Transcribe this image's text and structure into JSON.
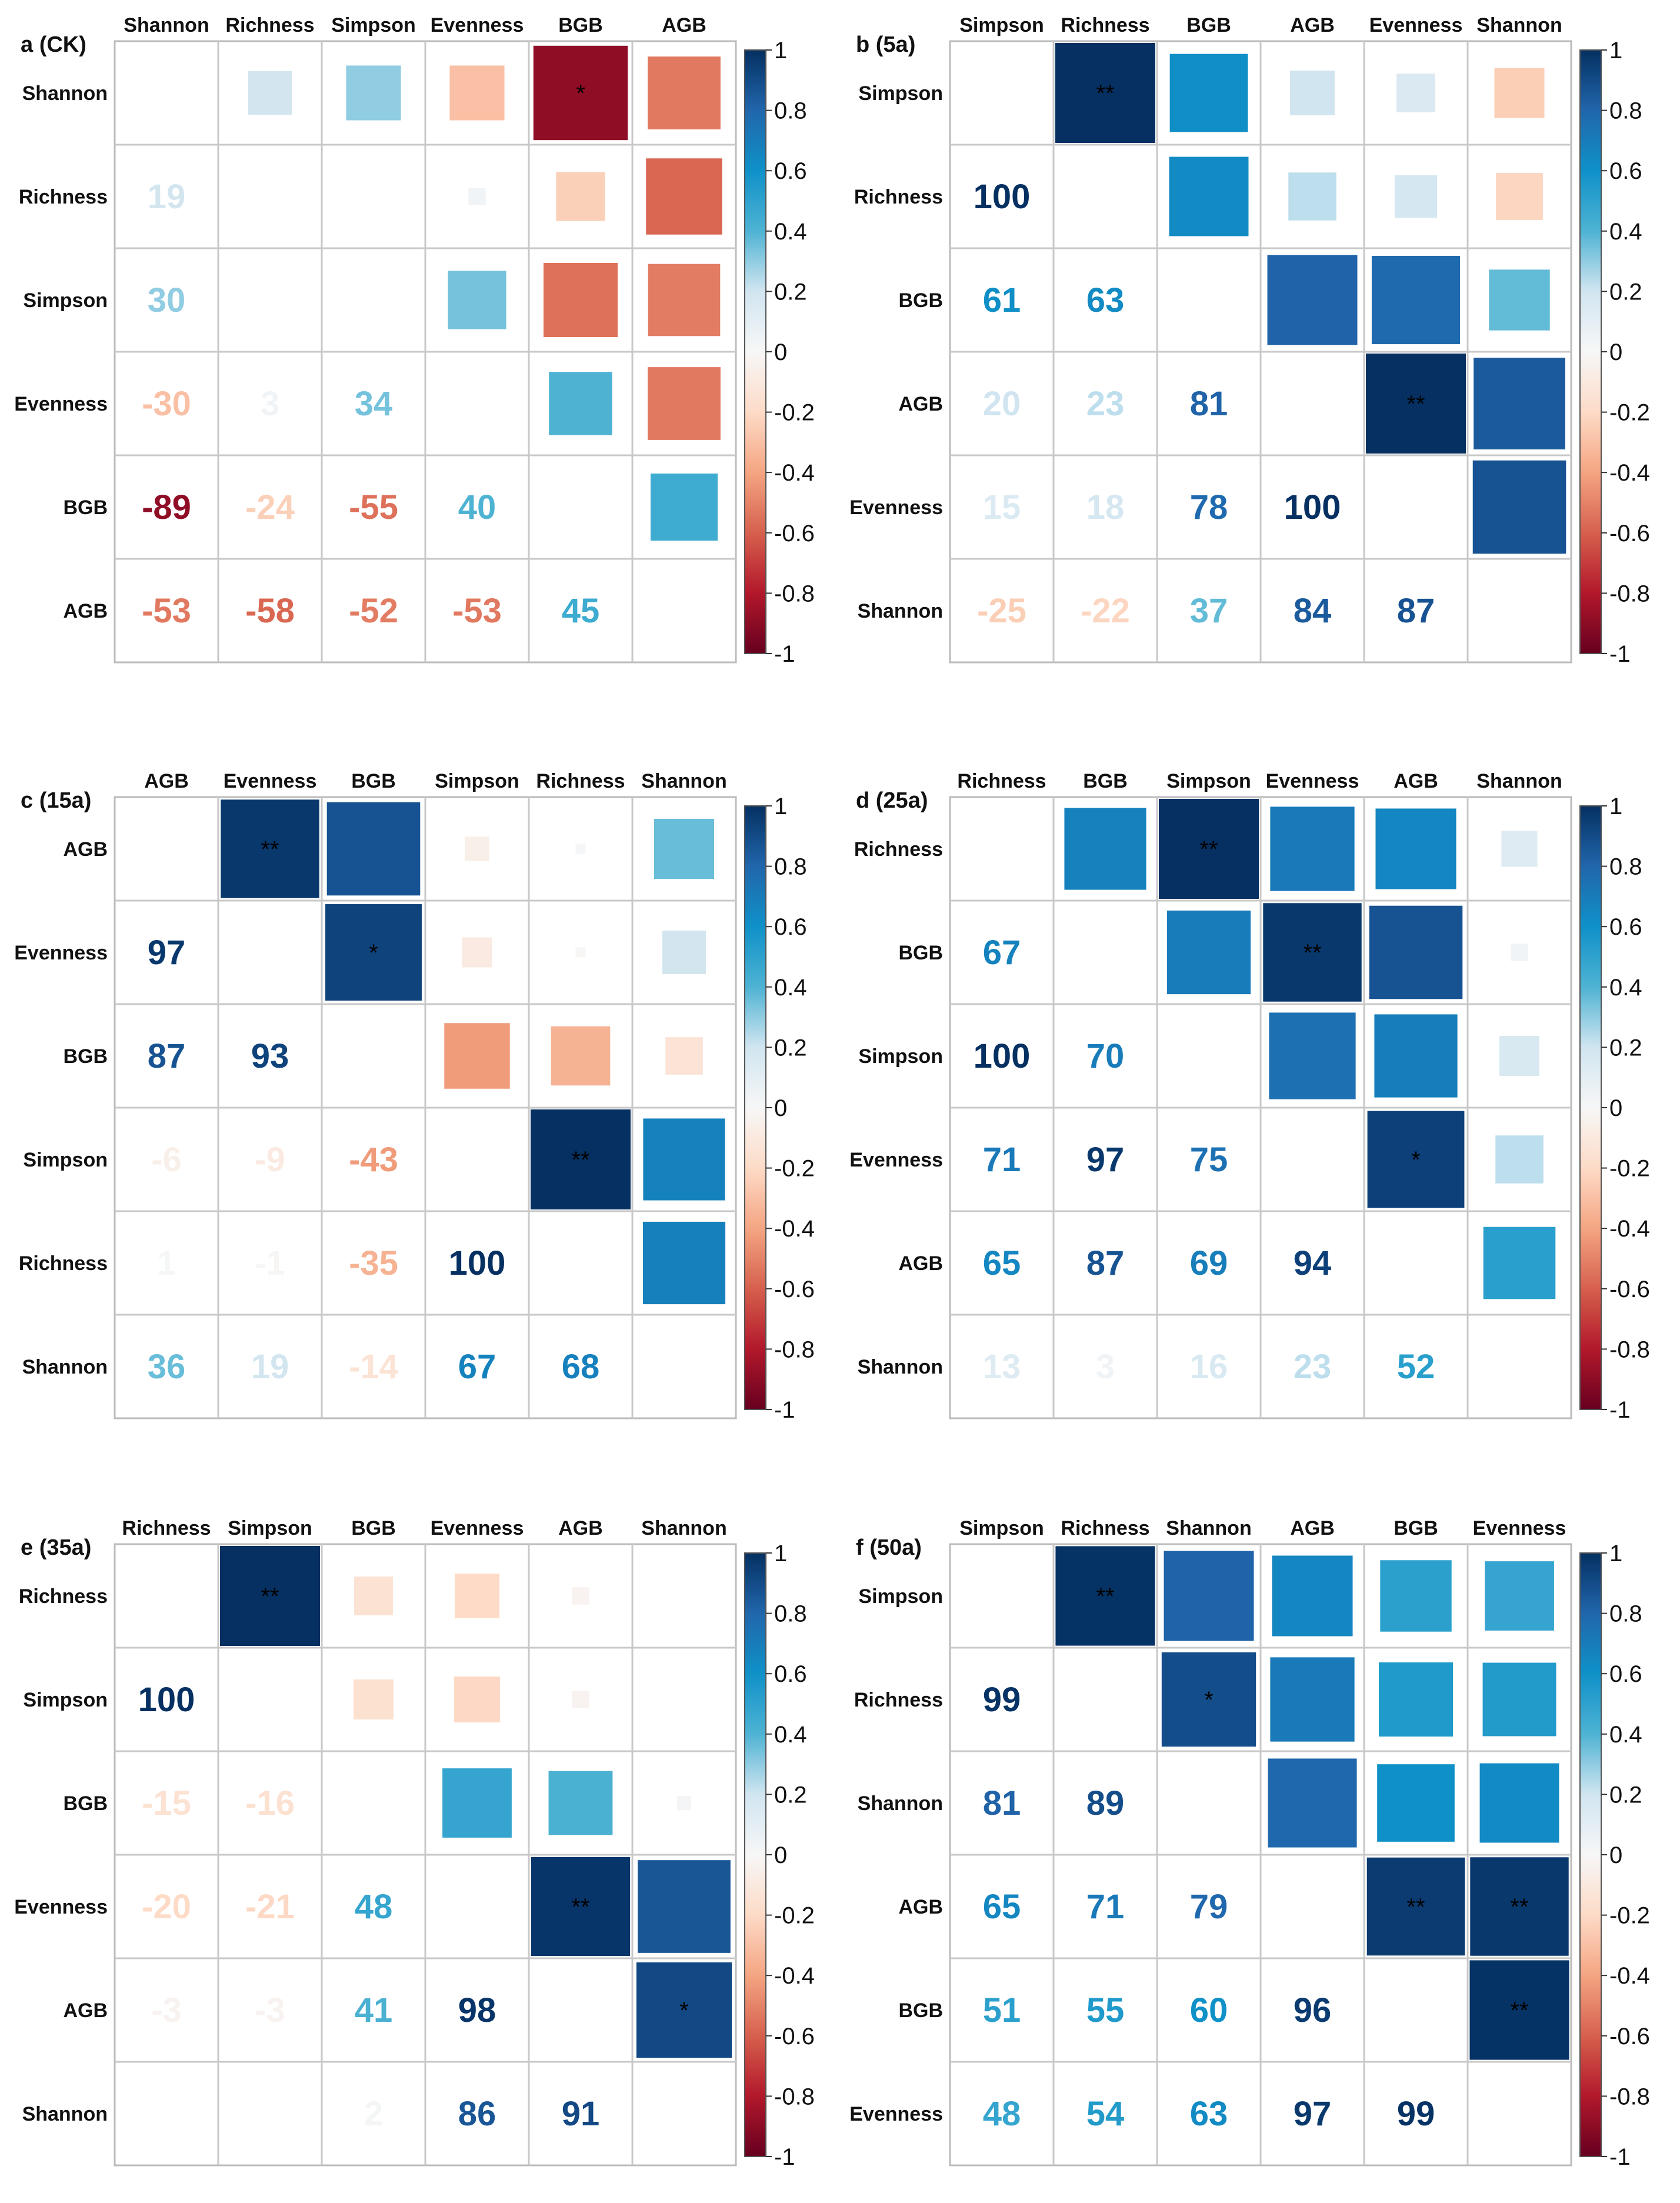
{
  "colorscale": {
    "stops": [
      {
        "v": -1.0,
        "c": "#67001f"
      },
      {
        "v": -0.8,
        "c": "#b2182b"
      },
      {
        "v": -0.6,
        "c": "#d6604d"
      },
      {
        "v": -0.4,
        "c": "#f4a582"
      },
      {
        "v": -0.2,
        "c": "#fddbc7"
      },
      {
        "v": 0.0,
        "c": "#f7f7f7"
      },
      {
        "v": 0.2,
        "c": "#d1e5f0"
      },
      {
        "v": 0.4,
        "c": "#4eb3d3"
      },
      {
        "v": 0.6,
        "c": "#0f91c8"
      },
      {
        "v": 0.8,
        "c": "#2166ac"
      },
      {
        "v": 1.0,
        "c": "#053061"
      }
    ],
    "ticks": [
      "1",
      "0.8",
      "0.6",
      "0.4",
      "0.2",
      "0",
      "-0.2",
      "-0.4",
      "-0.6",
      "-0.8",
      "-1"
    ]
  },
  "chart_data": [
    {
      "type": "heatmap",
      "title": "a (CK)",
      "variables": [
        "Shannon",
        "Richness",
        "Simpson",
        "Evenness",
        "BGB",
        "AGB"
      ],
      "lower_values": [
        [
          19
        ],
        [
          30,
          null
        ],
        [
          -30,
          3,
          34
        ],
        [
          -89,
          -24,
          -55,
          40
        ],
        [
          -53,
          -58,
          -52,
          -53,
          45
        ]
      ],
      "lower_labels": [
        [
          "19"
        ],
        [
          "30",
          ""
        ],
        [
          "-30",
          "3",
          "34"
        ],
        [
          "-89",
          "-24",
          "-55",
          "40"
        ],
        [
          "-53",
          "-58",
          "-52",
          "-53",
          "45"
        ]
      ],
      "significance": {
        "0-4": "*"
      },
      "value_range": [
        -1,
        1
      ]
    },
    {
      "type": "heatmap",
      "title": "b (5a)",
      "variables": [
        "Simpson",
        "Richness",
        "BGB",
        "AGB",
        "Evenness",
        "Shannon"
      ],
      "lower_values": [
        [
          100
        ],
        [
          61,
          63
        ],
        [
          20,
          23,
          81
        ],
        [
          15,
          18,
          78,
          100
        ],
        [
          -25,
          -22,
          37,
          84,
          87
        ]
      ],
      "lower_labels": [
        [
          "100"
        ],
        [
          "61",
          "63"
        ],
        [
          "20",
          "23",
          "81"
        ],
        [
          "15",
          "18",
          "78",
          "100"
        ],
        [
          "-25",
          "-22",
          "37",
          "84",
          "87"
        ]
      ],
      "significance": {
        "0-1": "**",
        "3-4": "**"
      },
      "value_range": [
        -1,
        1
      ]
    },
    {
      "type": "heatmap",
      "title": "c (15a)",
      "variables": [
        "AGB",
        "Evenness",
        "BGB",
        "Simpson",
        "Richness",
        "Shannon"
      ],
      "lower_values": [
        [
          97
        ],
        [
          87,
          93
        ],
        [
          -6,
          -9,
          -43
        ],
        [
          1,
          -1,
          -35,
          100
        ],
        [
          36,
          19,
          -14,
          67,
          68
        ]
      ],
      "lower_labels": [
        [
          "97"
        ],
        [
          "87",
          "93"
        ],
        [
          "-6",
          "-9",
          "-43"
        ],
        [
          "1",
          "-1",
          "-35",
          "100"
        ],
        [
          "36",
          "19",
          "-14",
          "67",
          "68"
        ]
      ],
      "significance": {
        "0-1": "**",
        "1-2": "*",
        "3-4": "**"
      },
      "value_range": [
        -1,
        1
      ]
    },
    {
      "type": "heatmap",
      "title": "d (25a)",
      "variables": [
        "Richness",
        "BGB",
        "Simpson",
        "Evenness",
        "AGB",
        "Shannon"
      ],
      "lower_values": [
        [
          67
        ],
        [
          100,
          70
        ],
        [
          71,
          97,
          75
        ],
        [
          65,
          87,
          69,
          94
        ],
        [
          13,
          3,
          16,
          23,
          52
        ]
      ],
      "lower_labels": [
        [
          "67"
        ],
        [
          "100",
          "70"
        ],
        [
          "71",
          "97",
          "75"
        ],
        [
          "65",
          "87",
          "69",
          "94"
        ],
        [
          "13",
          "3",
          "16",
          "23",
          "52"
        ]
      ],
      "significance": {
        "0-2": "**",
        "1-3": "**",
        "3-4": "*"
      },
      "value_range": [
        -1,
        1
      ]
    },
    {
      "type": "heatmap",
      "title": "e (35a)",
      "variables": [
        "Richness",
        "Simpson",
        "BGB",
        "Evenness",
        "AGB",
        "Shannon"
      ],
      "lower_values": [
        [
          100
        ],
        [
          -15,
          -16
        ],
        [
          -20,
          -21,
          48
        ],
        [
          -3,
          -3,
          41,
          98
        ],
        [
          null,
          null,
          2,
          86,
          91
        ]
      ],
      "lower_labels": [
        [
          "100"
        ],
        [
          "-15",
          "-16"
        ],
        [
          "-20",
          "-21",
          "48"
        ],
        [
          "-3",
          "-3",
          "41",
          "98"
        ],
        [
          "",
          "",
          "2",
          "86",
          "91"
        ]
      ],
      "significance": {
        "0-1": "**",
        "3-4": "**",
        "4-5": "*"
      },
      "value_range": [
        -1,
        1
      ]
    },
    {
      "type": "heatmap",
      "title": "f (50a)",
      "variables": [
        "Simpson",
        "Richness",
        "Shannon",
        "AGB",
        "BGB",
        "Evenness"
      ],
      "lower_values": [
        [
          99
        ],
        [
          81,
          89
        ],
        [
          65,
          71,
          79
        ],
        [
          51,
          55,
          60,
          96
        ],
        [
          48,
          54,
          63,
          97,
          99
        ]
      ],
      "lower_labels": [
        [
          "99"
        ],
        [
          "81",
          "89"
        ],
        [
          "65",
          "71",
          "79"
        ],
        [
          "51",
          "55",
          "60",
          "96"
        ],
        [
          "48",
          "54",
          "63",
          "97",
          "99"
        ]
      ],
      "significance": {
        "0-1": "**",
        "1-2": "*",
        "3-4": "**",
        "3-5": "**",
        "4-5": "**"
      },
      "value_range": [
        -1,
        1
      ]
    }
  ]
}
